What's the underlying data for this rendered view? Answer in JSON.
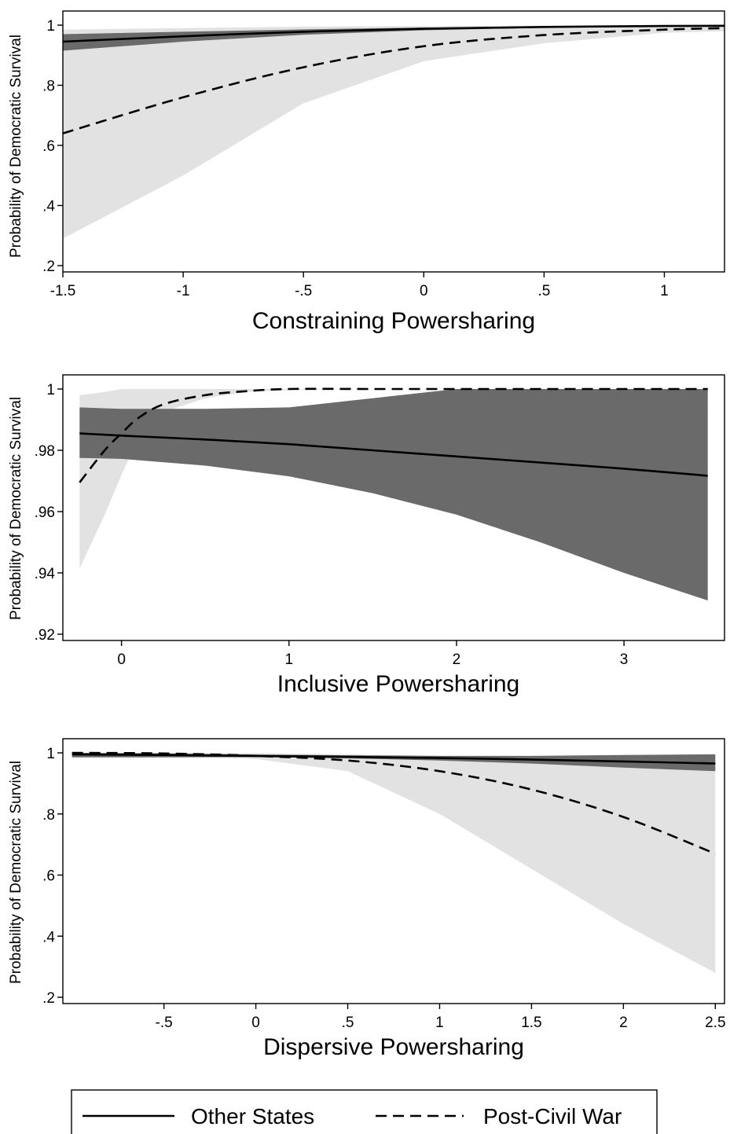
{
  "legend": {
    "items": [
      {
        "label": "Other States",
        "style": "solid"
      },
      {
        "label": "Post-Civil War",
        "style": "dashed"
      }
    ],
    "placement": "bottom"
  },
  "colors": {
    "pcw_band": "#e2e2e2",
    "other_band": "#6a6a6a",
    "line": "#000000"
  },
  "chart_data": [
    {
      "type": "line",
      "xlabel": "Constraining Powersharing",
      "ylabel": "Probability of Democratic Survival",
      "xlim": [
        -1.5,
        1.25
      ],
      "ylim": [
        0.2,
        1.0
      ],
      "xticks": [
        -1.5,
        -1,
        -0.5,
        0,
        0.5,
        1
      ],
      "xtick_labels": [
        "-1.5",
        "-1",
        "-.5",
        "0",
        ".5",
        "1"
      ],
      "yticks": [
        0.2,
        0.4,
        0.6,
        0.8,
        1.0
      ],
      "ytick_labels": [
        ".2",
        ".4",
        ".6",
        ".8",
        "1"
      ],
      "grid": false,
      "series": [
        {
          "name": "Other States",
          "x": [
            -1.5,
            -1.0,
            -0.5,
            0.0,
            0.5,
            1.0,
            1.25
          ],
          "values": [
            0.945,
            0.963,
            0.978,
            0.988,
            0.994,
            0.997,
            0.998
          ],
          "ci_lower": [
            0.915,
            0.945,
            0.968,
            0.983,
            0.991,
            0.995,
            0.996
          ],
          "ci_upper": [
            0.97,
            0.978,
            0.986,
            0.992,
            0.996,
            0.998,
            0.999
          ]
        },
        {
          "name": "Post-Civil War",
          "x": [
            -1.5,
            -1.0,
            -0.5,
            0.0,
            0.5,
            1.0,
            1.25
          ],
          "values": [
            0.64,
            0.76,
            0.86,
            0.93,
            0.967,
            0.985,
            0.99
          ],
          "ci_lower": [
            0.29,
            0.5,
            0.74,
            0.88,
            0.94,
            0.975,
            0.98
          ],
          "ci_upper": [
            0.985,
            0.99,
            0.995,
            0.997,
            0.998,
            0.999,
            0.999
          ]
        }
      ]
    },
    {
      "type": "line",
      "xlabel": "Inclusive Powersharing",
      "ylabel": "Probability of Democratic Survival",
      "xlim": [
        -0.35,
        3.6
      ],
      "ylim": [
        0.92,
        1.0
      ],
      "xticks": [
        0,
        1,
        2,
        3
      ],
      "xtick_labels": [
        "0",
        "1",
        "2",
        "3"
      ],
      "yticks": [
        0.92,
        0.94,
        0.96,
        0.98,
        1.0
      ],
      "ytick_labels": [
        ".92",
        ".94",
        ".96",
        ".98",
        "1"
      ],
      "grid": false,
      "series": [
        {
          "name": "Other States",
          "x": [
            -0.25,
            0.0,
            0.5,
            1.0,
            1.5,
            2.0,
            2.5,
            3.0,
            3.5
          ],
          "values": [
            0.9855,
            0.9848,
            0.9835,
            0.982,
            0.98,
            0.978,
            0.976,
            0.974,
            0.9717
          ],
          "ci_lower": [
            0.9775,
            0.9772,
            0.975,
            0.9715,
            0.966,
            0.959,
            0.95,
            0.94,
            0.931
          ],
          "ci_upper": [
            0.994,
            0.9935,
            0.9935,
            0.994,
            0.997,
            1.0,
            1.0,
            1.0,
            1.0
          ]
        },
        {
          "name": "Post-Civil War",
          "x": [
            -0.25,
            -0.1,
            0.0,
            0.1,
            0.25,
            0.5,
            0.75,
            1.0,
            1.5,
            2.0,
            2.5,
            3.0,
            3.5
          ],
          "values": [
            0.9695,
            0.98,
            0.9855,
            0.9905,
            0.995,
            0.998,
            0.9993,
            1.0,
            1.0,
            1.0,
            1.0,
            1.0,
            1.0
          ],
          "ci_lower": [
            0.9415,
            0.959,
            0.972,
            0.984,
            0.9925,
            0.997,
            0.999,
            0.9997,
            1.0,
            1.0,
            1.0,
            1.0,
            1.0
          ],
          "ci_upper": [
            0.998,
            0.999,
            1.0,
            1.0,
            1.0,
            1.0,
            1.0,
            1.0,
            1.0,
            1.0,
            1.0,
            1.0,
            1.0
          ]
        }
      ]
    },
    {
      "type": "line",
      "xlabel": "Dispersive Powersharing",
      "ylabel": "Probability of Democratic Survival",
      "xlim": [
        -1.05,
        2.55
      ],
      "ylim": [
        0.2,
        1.0
      ],
      "xticks": [
        -0.5,
        0,
        0.5,
        1,
        1.5,
        2,
        2.5
      ],
      "xtick_labels": [
        "-.5",
        "0",
        ".5",
        "1",
        "1.5",
        "2",
        "2.5"
      ],
      "yticks": [
        0.2,
        0.4,
        0.6,
        0.8,
        1.0
      ],
      "ytick_labels": [
        ".2",
        ".4",
        ".6",
        ".8",
        "1"
      ],
      "grid": false,
      "series": [
        {
          "name": "Other States",
          "x": [
            -1.0,
            -0.5,
            0.0,
            0.5,
            1.0,
            1.5,
            2.0,
            2.5
          ],
          "values": [
            0.995,
            0.993,
            0.99,
            0.987,
            0.983,
            0.978,
            0.972,
            0.965
          ],
          "ci_lower": [
            0.985,
            0.985,
            0.986,
            0.982,
            0.975,
            0.965,
            0.952,
            0.94
          ],
          "ci_upper": [
            1.0,
            0.998,
            0.994,
            0.992,
            0.99,
            0.99,
            0.993,
            0.995
          ]
        },
        {
          "name": "Post-Civil War",
          "x": [
            -1.0,
            -0.5,
            0.0,
            0.5,
            1.0,
            1.5,
            2.0,
            2.5
          ],
          "values": [
            1.0,
            0.998,
            0.99,
            0.975,
            0.94,
            0.88,
            0.79,
            0.67
          ],
          "ci_lower": [
            0.99,
            0.99,
            0.98,
            0.94,
            0.8,
            0.62,
            0.44,
            0.28
          ],
          "ci_upper": [
            1.0,
            1.0,
            0.999,
            0.995,
            0.99,
            0.985,
            0.98,
            0.975
          ]
        }
      ]
    }
  ]
}
